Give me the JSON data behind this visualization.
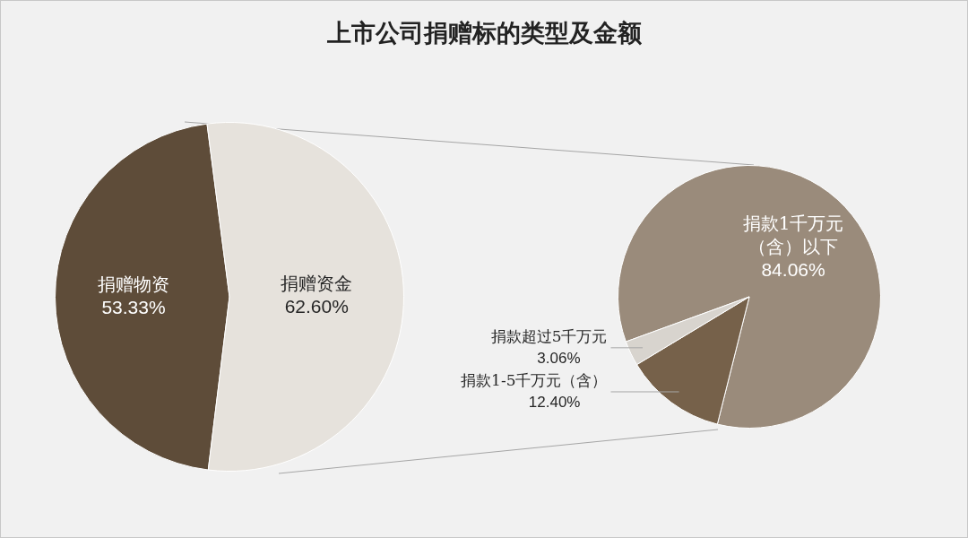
{
  "chart_data": [
    {
      "type": "pie",
      "title": "上市公司捐赠标的类型及金额",
      "categories": [
        "捐赠物资",
        "捐赠资金"
      ],
      "values": [
        53.33,
        62.6
      ],
      "colors": [
        "#5e4c39",
        "#e6e2dc"
      ],
      "value_labels": [
        "53.33%",
        "62.60%"
      ]
    },
    {
      "type": "pie",
      "categories": [
        "捐款1千万元（含）以下",
        "捐款1-5千万元（含）",
        "捐款超过5千万元"
      ],
      "values": [
        84.06,
        12.4,
        3.06
      ],
      "colors": [
        "#9a8b7b",
        "#76614a",
        "#d8d4ce"
      ],
      "value_labels": [
        "84.06%",
        "12.40%",
        "3.06%"
      ]
    }
  ]
}
